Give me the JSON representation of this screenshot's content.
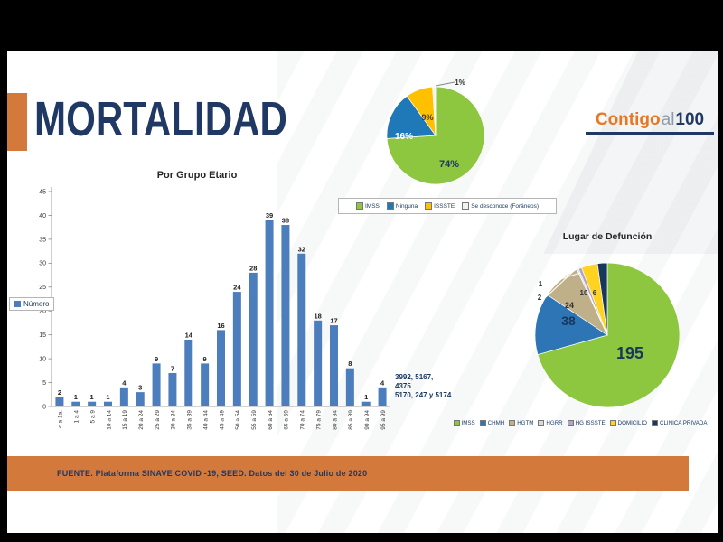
{
  "header": {
    "title": "MORTALIDAD",
    "logo": {
      "word1": "Contigo",
      "word2": "al",
      "word3": "100"
    }
  },
  "footer": {
    "text": "FUENTE. Plataforma SINAVE COVID -19, SEED. Datos del 30 de Julio de 2020"
  },
  "colors": {
    "accent_orange": "#D4793C",
    "navy": "#1F3864",
    "bar_blue": "#4C7EBE",
    "logo_orange": "#E87722",
    "logo_gray": "#8C9BAA",
    "text_dark": "#262626"
  },
  "chart_data": [
    {
      "type": "bar",
      "title": "Por Grupo Etario",
      "legend_label": "Número",
      "ylim": [
        0,
        45
      ],
      "ytick_step": 5,
      "grid": false,
      "bar_color": "#4C7EBE",
      "categories": [
        "< a 1a.",
        "1 a 4",
        "5 a 9",
        "10 a 14",
        "15 a 19",
        "20 a 24",
        "25 a 29",
        "30 a 34",
        "35 a 39",
        "40 a 44",
        "45 a 49",
        "50 a 54",
        "55 a 59",
        "60 a 64",
        "65 a 69",
        "70 a 74",
        "75 a 79",
        "80 a 84",
        "85 a 89",
        "90 a 94",
        "95 a 99"
      ],
      "values": [
        2,
        1,
        1,
        1,
        4,
        3,
        9,
        7,
        14,
        9,
        16,
        24,
        28,
        39,
        38,
        32,
        18,
        17,
        8,
        1,
        4
      ],
      "annotation_lines": [
        "3992, 5167,",
        "4375",
        "5170, 247 y 5174"
      ]
    },
    {
      "type": "pie",
      "legend_position": "bottom",
      "slices": [
        {
          "label": "IMSS",
          "value": 74,
          "display": "74%",
          "color": "#8DC63F"
        },
        {
          "label": "Ninguna",
          "value": 16,
          "display": "16%",
          "color": "#1F78B8"
        },
        {
          "label": "ISSSTE",
          "value": 9,
          "display": "9%",
          "color": "#FFC000"
        },
        {
          "label": "Se desconoce (Foráneos)",
          "value": 1,
          "display": "1%",
          "color": "#F2F2F2"
        }
      ]
    },
    {
      "type": "pie",
      "title": "Lugar de Defunción",
      "legend_position": "bottom",
      "slices": [
        {
          "label": "IMSS",
          "value": 195,
          "display": "195",
          "color": "#8DC63F"
        },
        {
          "label": "CHMH",
          "value": 38,
          "display": "38",
          "color": "#2E75B6"
        },
        {
          "label": "HGTM",
          "value": 24,
          "display": "24",
          "color": "#BFB08A"
        },
        {
          "label": "HGRR",
          "value": 1,
          "display": "1",
          "color": "#D9D9D9"
        },
        {
          "label": "HG ISSSTE",
          "value": 2,
          "display": "2",
          "color": "#B3A2C7"
        },
        {
          "label": "DOMICILIO",
          "value": 10,
          "display": "10",
          "color": "#FFD320"
        },
        {
          "label": "CLINICA PRIVADA",
          "value": 6,
          "display": "6",
          "color": "#17375E"
        }
      ]
    }
  ]
}
